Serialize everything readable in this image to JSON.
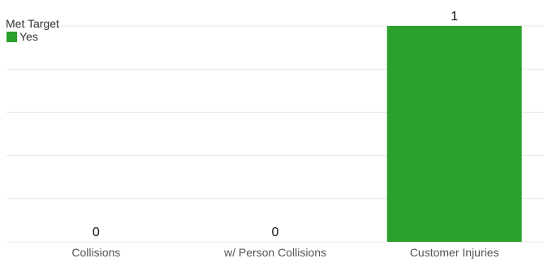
{
  "chart_data": {
    "type": "bar",
    "title": "",
    "xlabel": "",
    "ylabel": "",
    "categories": [
      "Collisions",
      "w/ Person Collisions",
      "Customer Injuries"
    ],
    "values": [
      0,
      0,
      1
    ],
    "ylim": [
      0,
      1
    ],
    "grid": true,
    "legend": {
      "title": "Met Target",
      "placement": "top-left",
      "items": [
        {
          "label": "Yes",
          "color": "#2ca02c"
        }
      ]
    },
    "bar_color": "#2ca02c",
    "gridline_color": "#e8e8e8",
    "text_color": "#333333",
    "data_label_color": "#111111"
  }
}
